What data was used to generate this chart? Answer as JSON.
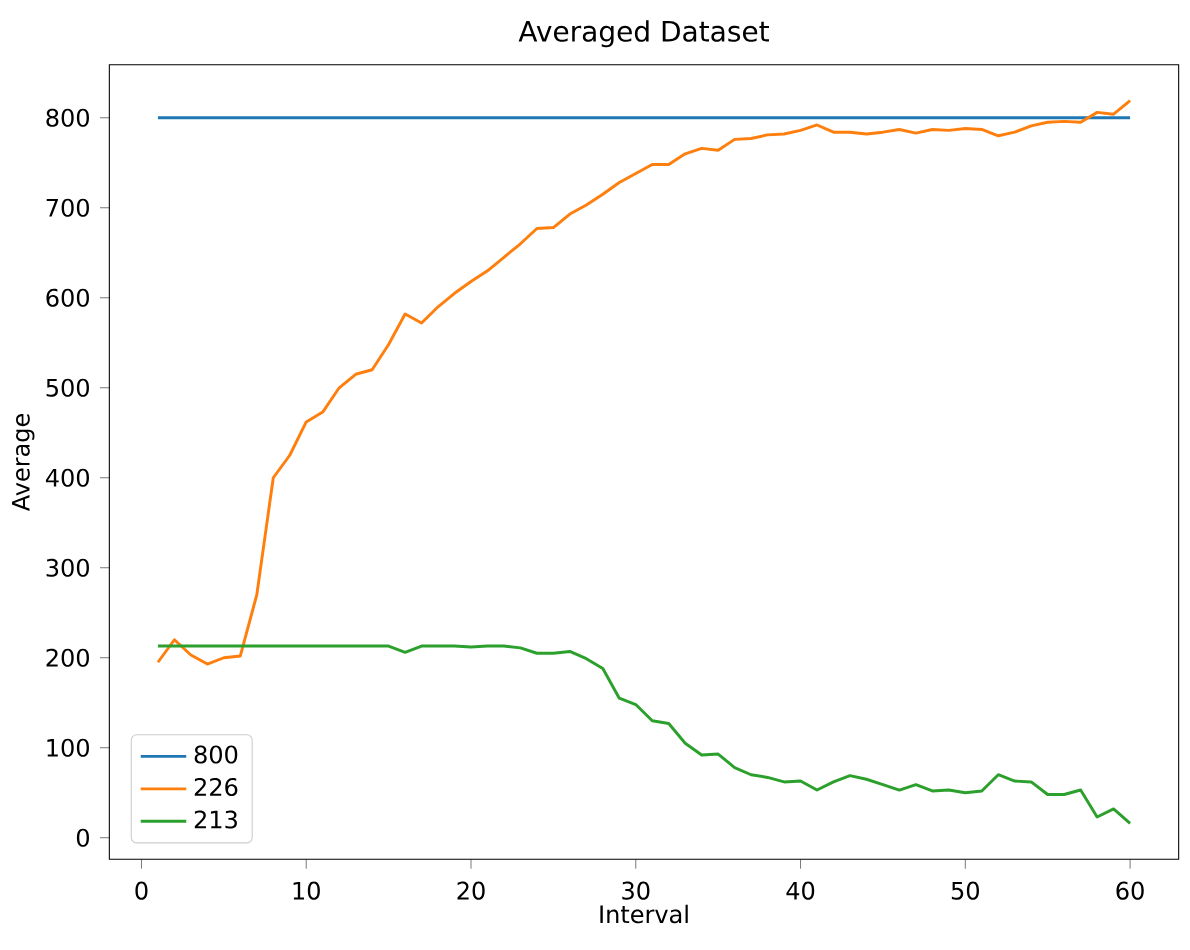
{
  "chart_data": {
    "type": "line",
    "title": "Averaged Dataset",
    "xlabel": "Interval",
    "ylabel": "Average",
    "xlim": [
      -1.95,
      62.95
    ],
    "ylim": [
      -24,
      859
    ],
    "xticks": [
      0,
      10,
      20,
      30,
      40,
      50,
      60
    ],
    "yticks": [
      0,
      100,
      200,
      300,
      400,
      500,
      600,
      700,
      800
    ],
    "legend": "bottom left",
    "grid": false,
    "series": [
      {
        "name": "800",
        "color": "#1f77b4",
        "x": [
          1,
          60
        ],
        "values": [
          800,
          800
        ]
      },
      {
        "name": "226",
        "color": "#ff7f0e",
        "x": [
          1,
          2,
          3,
          4,
          5,
          6,
          7,
          8,
          9,
          10,
          11,
          12,
          13,
          14,
          15,
          16,
          17,
          18,
          19,
          20,
          21,
          22,
          23,
          24,
          25,
          26,
          27,
          28,
          29,
          30,
          31,
          32,
          33,
          34,
          35,
          36,
          37,
          38,
          39,
          40,
          41,
          42,
          43,
          44,
          45,
          46,
          47,
          48,
          49,
          50,
          51,
          52,
          53,
          54,
          55,
          56,
          57,
          58,
          59,
          60
        ],
        "values": [
          195,
          220,
          203,
          193,
          200,
          202,
          270,
          400,
          425,
          462,
          473,
          500,
          515,
          520,
          548,
          582,
          572,
          590,
          605,
          618,
          630,
          645,
          660,
          677,
          678,
          693,
          703,
          715,
          728,
          738,
          748,
          748,
          760,
          766,
          764,
          776,
          777,
          781,
          782,
          786,
          792,
          784,
          784,
          782,
          784,
          787,
          783,
          787,
          786,
          788,
          787,
          780,
          784,
          791,
          795,
          796,
          795,
          806,
          804,
          819
        ]
      },
      {
        "name": "213",
        "color": "#2ca02c",
        "x": [
          1,
          2,
          3,
          4,
          5,
          6,
          7,
          8,
          9,
          10,
          11,
          12,
          13,
          14,
          15,
          16,
          17,
          18,
          19,
          20,
          21,
          22,
          23,
          24,
          25,
          26,
          27,
          28,
          29,
          30,
          31,
          32,
          33,
          34,
          35,
          36,
          37,
          38,
          39,
          40,
          41,
          42,
          43,
          44,
          45,
          46,
          47,
          48,
          49,
          50,
          51,
          52,
          53,
          54,
          55,
          56,
          57,
          58,
          59,
          60
        ],
        "values": [
          213,
          213,
          213,
          213,
          213,
          213,
          213,
          213,
          213,
          213,
          213,
          213,
          213,
          213,
          213,
          206,
          213,
          213,
          213,
          212,
          213,
          213,
          211,
          205,
          205,
          207,
          199,
          188,
          155,
          148,
          130,
          127,
          105,
          92,
          93,
          78,
          70,
          67,
          62,
          63,
          53,
          62,
          69,
          65,
          59,
          53,
          59,
          52,
          53,
          50,
          52,
          70,
          63,
          62,
          48,
          48,
          53,
          23,
          32,
          16
        ]
      }
    ]
  }
}
